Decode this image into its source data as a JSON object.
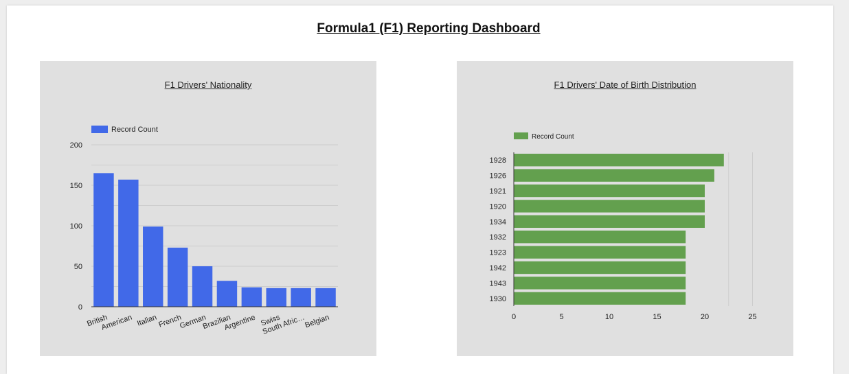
{
  "dashboard": {
    "title": "Formula1 (F1) Reporting Dashboard"
  },
  "chart_data": [
    {
      "type": "bar",
      "orientation": "vertical",
      "title": "F1 Drivers' Nationality",
      "categories": [
        "British",
        "American",
        "Italian",
        "French",
        "German",
        "Brazilian",
        "Argentine",
        "Swiss",
        "South Afric…",
        "Belgian"
      ],
      "series": [
        {
          "name": "Record Count",
          "values": [
            165,
            157,
            99,
            73,
            50,
            32,
            24,
            23,
            23,
            23
          ]
        }
      ],
      "ylim": [
        0,
        200
      ],
      "yticks": [
        0,
        50,
        100,
        150,
        200
      ],
      "grid": true,
      "legend": "top-left",
      "color": "#4169e8"
    },
    {
      "type": "bar",
      "orientation": "horizontal",
      "title": "F1 Drivers' Date of Birth Distribution",
      "categories": [
        "1928",
        "1926",
        "1921",
        "1920",
        "1934",
        "1932",
        "1923",
        "1942",
        "1943",
        "1930"
      ],
      "series": [
        {
          "name": "Record Count",
          "values": [
            22,
            21,
            20,
            20,
            20,
            18,
            18,
            18,
            18,
            18
          ]
        }
      ],
      "xlim": [
        0,
        25
      ],
      "xticks": [
        0,
        5,
        10,
        15,
        20,
        25
      ],
      "grid": true,
      "legend": "top-left",
      "color": "#63a04e"
    }
  ]
}
